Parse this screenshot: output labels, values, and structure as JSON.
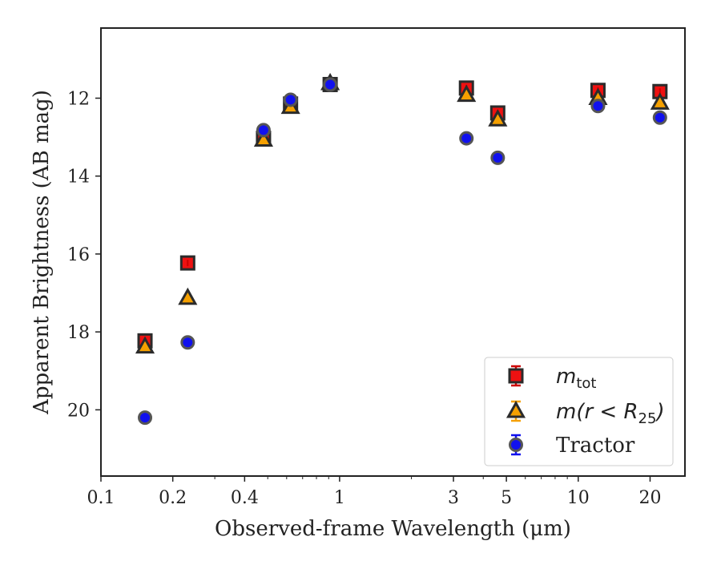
{
  "chart_data": {
    "type": "scatter",
    "xscale": "log",
    "xlim": [
      0.1,
      28
    ],
    "ylim": [
      21.7,
      10.2
    ],
    "y_inverted": true,
    "xlabel": "Observed-frame Wavelength (μm)",
    "ylabel": "Apparent Brightness (AB mag)",
    "x_ticks": [
      {
        "value": 0.1,
        "label": "0.1"
      },
      {
        "value": 0.2,
        "label": "0.2"
      },
      {
        "value": 0.4,
        "label": "0.4"
      },
      {
        "value": 1,
        "label": "1"
      },
      {
        "value": 3,
        "label": "3"
      },
      {
        "value": 5,
        "label": "5"
      },
      {
        "value": 10,
        "label": "10"
      },
      {
        "value": 20,
        "label": "20"
      }
    ],
    "y_ticks": [
      {
        "value": 12,
        "label": "12"
      },
      {
        "value": 14,
        "label": "14"
      },
      {
        "value": 16,
        "label": "16"
      },
      {
        "value": 18,
        "label": "18"
      },
      {
        "value": 20,
        "label": "20"
      }
    ],
    "grid": false,
    "legend_position": "bottom-right",
    "series": [
      {
        "name_main": "m",
        "name_sub": "tot",
        "name_suffix": "",
        "marker": "square",
        "color": "#ee1111",
        "errcolor": "#cc0000",
        "x": [
          0.153,
          0.231,
          0.48,
          0.623,
          0.913,
          3.4,
          4.6,
          12.1,
          22.0
        ],
        "y": [
          18.23,
          16.23,
          13.03,
          12.15,
          11.65,
          11.74,
          12.38,
          11.8,
          11.83
        ]
      },
      {
        "name_main": "m(r < R",
        "name_sub": "25",
        "name_suffix": ")",
        "marker": "triangle",
        "color": "#f5a000",
        "errcolor": "#f5a000",
        "x": [
          0.153,
          0.231,
          0.48,
          0.623,
          0.913,
          3.4,
          4.6,
          12.1,
          22.0
        ],
        "y": [
          18.38,
          17.13,
          13.07,
          12.23,
          11.62,
          11.92,
          12.55,
          12.0,
          12.12
        ]
      },
      {
        "name_main": "",
        "name_sub": "",
        "name_suffix": "Tractor",
        "marker": "circle",
        "color": "#1111ee",
        "errcolor": "#1111ee",
        "x": [
          0.153,
          0.231,
          0.48,
          0.623,
          0.913,
          3.4,
          4.6,
          12.1,
          22.0
        ],
        "y": [
          20.2,
          18.27,
          12.82,
          12.04,
          11.65,
          13.03,
          13.53,
          12.2,
          12.5
        ]
      }
    ]
  }
}
